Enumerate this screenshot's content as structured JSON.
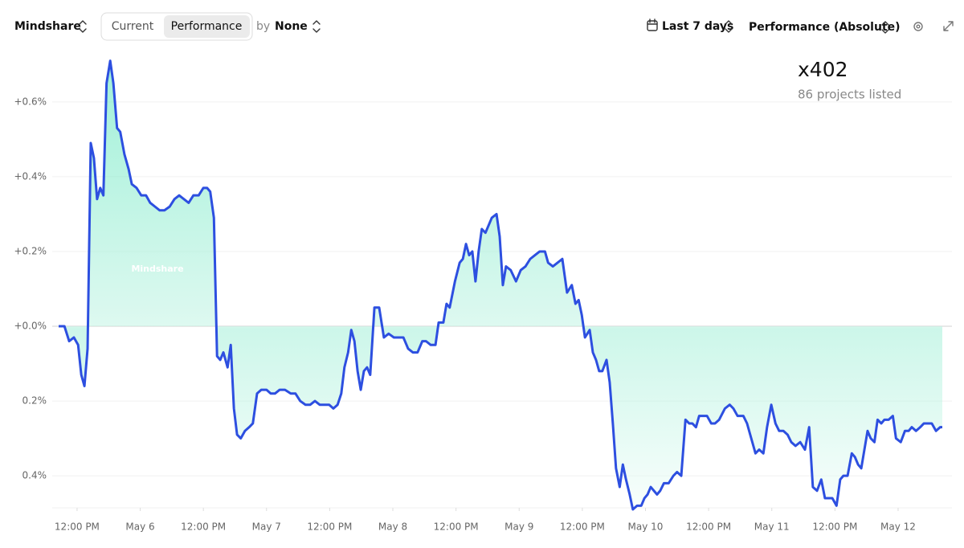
{
  "toolbar": {
    "metric": "Mindshare",
    "tabs": [
      "Current",
      "Performance"
    ],
    "by_label": "by",
    "group": "None",
    "range": "Last 7 days",
    "mode": "Performance (Absolute)"
  },
  "summary": {
    "count": "x402",
    "subtitle": "86 projects listed"
  },
  "chart_data": {
    "type": "line",
    "color": "#2d4fe0",
    "grid": true,
    "series": [
      {
        "name": "Mindshare",
        "color": "#2d4fe0",
        "x": [
          8.5,
          9.6,
          10.5,
          11.4,
          12.2,
          12.8,
          13.4,
          14.0,
          14.6,
          15.2,
          15.8,
          16.4,
          17.0,
          17.6,
          18.3,
          18.9,
          19.6,
          20.2,
          21.0,
          21.8,
          22.4,
          23.3,
          24.2,
          25.1,
          25.9,
          26.8,
          27.7,
          28.6,
          29.6,
          30.5,
          31.4,
          32.3,
          33.2,
          34.1,
          35.1,
          36.0,
          36.7,
          37.3,
          38.0,
          38.6,
          39.2,
          39.8,
          40.6,
          41.2,
          41.8,
          42.4,
          43.1,
          43.9,
          44.7,
          45.4,
          46.2,
          47.0,
          48.0,
          48.8,
          49.6,
          50.5,
          51.5,
          52.6,
          53.5,
          54.4,
          55.4,
          56.3,
          57.2,
          58.1,
          59.0,
          59.9,
          60.7,
          61.5,
          62.2,
          62.8,
          63.5,
          64.1,
          64.7,
          65.3,
          65.9,
          66.5,
          67.1,
          67.7,
          68.5,
          69.4,
          70.3,
          71.2,
          72.2,
          73.1,
          74.0,
          74.9,
          75.8,
          76.7,
          77.6,
          78.3,
          79.2,
          80.1,
          80.7,
          81.6,
          82.2,
          82.8,
          83.8,
          84.7,
          85.3,
          85.9,
          86.5,
          87.1,
          87.7,
          88.3,
          88.9,
          89.6,
          90.8,
          91.7,
          92.3,
          92.9,
          93.5,
          94.4,
          95.4,
          96.3,
          97.2,
          98.1,
          99.0,
          99.9,
          100.9,
          101.5,
          102.4,
          103.3,
          104.2,
          105.1,
          106.0,
          106.7,
          107.3,
          107.9,
          108.5,
          109.4,
          110.0,
          110.6,
          111.2,
          111.8,
          112.6,
          113.2,
          113.8,
          114.4,
          115.1,
          115.7,
          116.3,
          117.0,
          117.6,
          118.4,
          119.2,
          119.8,
          120.4,
          121.0,
          121.6,
          122.2,
          122.8,
          123.5,
          124.4,
          125.3,
          126.0,
          126.8,
          127.6,
          128.3,
          128.9,
          129.6,
          130.2,
          131.1,
          131.7,
          132.5,
          133.2,
          134.0,
          135.1,
          136.0,
          136.7,
          137.5,
          138.6,
          139.3,
          140.1,
          140.9,
          141.6,
          142.4,
          143.1,
          143.9,
          144.7,
          145.4,
          146.2,
          147.0,
          147.7,
          148.5,
          149.4,
          150.3,
          151.1,
          151.8,
          152.6,
          153.4,
          154.1,
          154.9,
          155.5,
          156.3,
          157.0,
          157.6,
          158.4,
          159.2,
          159.8,
          160.4,
          161.0,
          161.6,
          162.2,
          162.8,
          163.5,
          164.1,
          164.8,
          165.4,
          166.2,
          167.0,
          167.6,
          168.5,
          169.3,
          170.0,
          170.6,
          171.4,
          172.2,
          172.9,
          173.7,
          174.4,
          175.2,
          176.0,
          176.4
        ],
        "values": [
          0.0,
          0.0,
          -0.04,
          -0.03,
          -0.05,
          -0.13,
          -0.16,
          -0.06,
          0.49,
          0.45,
          0.34,
          0.37,
          0.35,
          0.65,
          0.71,
          0.65,
          0.53,
          0.52,
          0.46,
          0.42,
          0.38,
          0.37,
          0.35,
          0.35,
          0.33,
          0.32,
          0.31,
          0.31,
          0.32,
          0.34,
          0.35,
          0.34,
          0.33,
          0.35,
          0.35,
          0.37,
          0.37,
          0.36,
          0.29,
          -0.08,
          -0.09,
          -0.07,
          -0.11,
          -0.05,
          -0.22,
          -0.29,
          -0.3,
          -0.28,
          -0.27,
          -0.26,
          -0.18,
          -0.17,
          -0.17,
          -0.18,
          -0.18,
          -0.17,
          -0.17,
          -0.18,
          -0.18,
          -0.2,
          -0.21,
          -0.21,
          -0.2,
          -0.21,
          -0.21,
          -0.21,
          -0.22,
          -0.21,
          -0.18,
          -0.11,
          -0.07,
          -0.01,
          -0.04,
          -0.12,
          -0.17,
          -0.12,
          -0.11,
          -0.13,
          0.05,
          0.05,
          -0.03,
          -0.02,
          -0.03,
          -0.03,
          -0.03,
          -0.06,
          -0.07,
          -0.07,
          -0.04,
          -0.04,
          -0.05,
          -0.05,
          0.01,
          0.01,
          0.06,
          0.05,
          0.12,
          0.17,
          0.18,
          0.22,
          0.19,
          0.2,
          0.12,
          0.2,
          0.26,
          0.25,
          0.29,
          0.3,
          0.24,
          0.11,
          0.16,
          0.15,
          0.12,
          0.15,
          0.16,
          0.18,
          0.19,
          0.2,
          0.2,
          0.17,
          0.16,
          0.17,
          0.18,
          0.09,
          0.11,
          0.06,
          0.07,
          0.03,
          -0.03,
          -0.01,
          -0.07,
          -0.09,
          -0.12,
          -0.12,
          -0.09,
          -0.15,
          -0.26,
          -0.38,
          -0.43,
          -0.37,
          -0.41,
          -0.45,
          -0.49,
          -0.48,
          -0.48,
          -0.46,
          -0.45,
          -0.43,
          -0.44,
          -0.45,
          -0.44,
          -0.42,
          -0.42,
          -0.4,
          -0.39,
          -0.4,
          -0.25,
          -0.26,
          -0.26,
          -0.27,
          -0.24,
          -0.24,
          -0.24,
          -0.26,
          -0.26,
          -0.25,
          -0.22,
          -0.21,
          -0.22,
          -0.24,
          -0.24,
          -0.26,
          -0.3,
          -0.34,
          -0.33,
          -0.34,
          -0.27,
          -0.21,
          -0.26,
          -0.28,
          -0.28,
          -0.29,
          -0.31,
          -0.32,
          -0.31,
          -0.33,
          -0.27,
          -0.43,
          -0.44,
          -0.41,
          -0.46,
          -0.46,
          -0.46,
          -0.48,
          -0.41,
          -0.4,
          -0.4,
          -0.34,
          -0.35,
          -0.37,
          -0.38,
          -0.33,
          -0.28,
          -0.3,
          -0.31,
          -0.25,
          -0.26,
          -0.25,
          -0.25,
          -0.24,
          -0.3,
          -0.31,
          -0.28,
          -0.28,
          -0.27,
          -0.28,
          -0.27,
          -0.26,
          -0.26,
          -0.26,
          -0.28,
          -0.27,
          -0.27
        ]
      }
    ],
    "xlim": [
      8.5,
      176.4
    ],
    "xticks": [
      {
        "value": 12,
        "label": "12:00 PM"
      },
      {
        "value": 24,
        "label": "May 6"
      },
      {
        "value": 36,
        "label": "12:00 PM"
      },
      {
        "value": 48,
        "label": "May 7"
      },
      {
        "value": 60,
        "label": "12:00 PM"
      },
      {
        "value": 72,
        "label": "May 8"
      },
      {
        "value": 84,
        "label": "12:00 PM"
      },
      {
        "value": 96,
        "label": "May 9"
      },
      {
        "value": 108,
        "label": "12:00 PM"
      },
      {
        "value": 120,
        "label": "May 10"
      },
      {
        "value": 132,
        "label": "12:00 PM"
      },
      {
        "value": 144,
        "label": "May 11"
      },
      {
        "value": 156,
        "label": "12:00 PM"
      },
      {
        "value": 168,
        "label": "May 12"
      }
    ],
    "ylim": [
      -0.49,
      0.72
    ],
    "yticks": [
      {
        "value": 0.6,
        "label": "+0.6%"
      },
      {
        "value": 0.4,
        "label": "+0.4%"
      },
      {
        "value": 0.2,
        "label": "+0.2%"
      },
      {
        "value": 0.0,
        "label": "+0.0%"
      },
      {
        "value": -0.2,
        "label": "0.2%"
      },
      {
        "value": -0.4,
        "label": "0.4%"
      }
    ]
  }
}
